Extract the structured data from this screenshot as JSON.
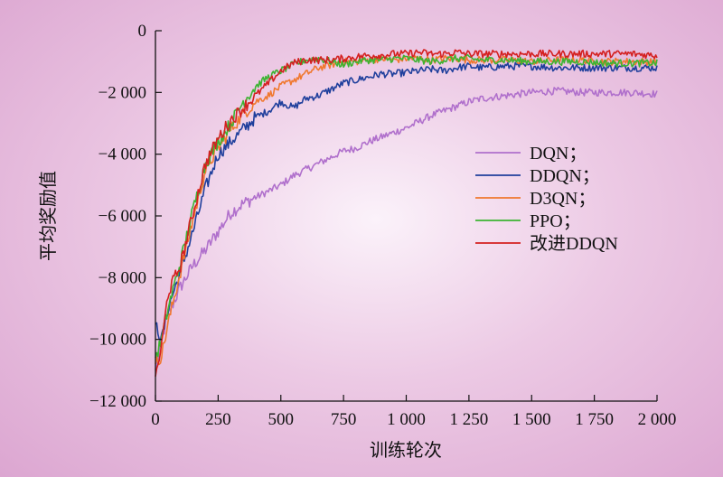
{
  "chart_data": {
    "type": "line",
    "title": "",
    "xlabel": "训练轮次",
    "ylabel": "平均奖励值",
    "xlim": [
      0,
      2000
    ],
    "ylim": [
      -12000,
      0
    ],
    "xticks": [
      0,
      250,
      500,
      750,
      1000,
      1250,
      1500,
      1750,
      2000
    ],
    "xtick_labels": [
      "0",
      "250",
      "500",
      "750",
      "1 000",
      "1 250",
      "1 500",
      "1 750",
      "2 000"
    ],
    "yticks": [
      0,
      -2000,
      -4000,
      -6000,
      -8000,
      -10000,
      -12000
    ],
    "ytick_labels": [
      "0",
      "−2 000",
      "−4 000",
      "−6 000",
      "−8 000",
      "−10 000",
      "−12 000"
    ],
    "grid": false,
    "legend_position": "right",
    "x": [
      0,
      25,
      50,
      100,
      150,
      200,
      250,
      300,
      350,
      400,
      450,
      500,
      550,
      600,
      650,
      700,
      750,
      800,
      850,
      900,
      950,
      1000,
      1050,
      1100,
      1150,
      1200,
      1250,
      1300,
      1400,
      1500,
      1600,
      1700,
      1800,
      1900,
      2000
    ],
    "series": [
      {
        "name": "DQN；",
        "color": "#b070cc",
        "values": [
          -11000,
          -10000,
          -9200,
          -8300,
          -7600,
          -7100,
          -6500,
          -5900,
          -5600,
          -5400,
          -5200,
          -5000,
          -4700,
          -4500,
          -4300,
          -4100,
          -3900,
          -3800,
          -3600,
          -3450,
          -3300,
          -3150,
          -2950,
          -2750,
          -2600,
          -2450,
          -2300,
          -2200,
          -2100,
          -2000,
          -1950,
          -2000,
          -2000,
          -2000,
          -2050
        ]
      },
      {
        "name": "DDQN；",
        "color": "#1f3f9c",
        "values": [
          -9500,
          -10000,
          -9000,
          -7800,
          -6500,
          -5100,
          -4000,
          -3600,
          -3200,
          -2800,
          -2600,
          -2300,
          -2500,
          -2200,
          -2100,
          -1900,
          -1700,
          -1600,
          -1500,
          -1400,
          -1400,
          -1350,
          -1300,
          -1250,
          -1300,
          -1200,
          -1150,
          -1200,
          -1150,
          -1150,
          -1200,
          -1200,
          -1200,
          -1200,
          -1200
        ]
      },
      {
        "name": "D3QN；",
        "color": "#f0782e",
        "values": [
          -10800,
          -10500,
          -9500,
          -7800,
          -6100,
          -4500,
          -3800,
          -3200,
          -2700,
          -2300,
          -2100,
          -1800,
          -1600,
          -1400,
          -1200,
          -1100,
          -1000,
          -1000,
          -950,
          -900,
          -950,
          -900,
          -900,
          -950,
          -900,
          -900,
          -950,
          -950,
          -950,
          -1000,
          -950,
          -950,
          -1000,
          -1000,
          -1000
        ]
      },
      {
        "name": "PPO；",
        "color": "#3cb432",
        "values": [
          -10600,
          -10000,
          -9000,
          -7500,
          -5800,
          -4300,
          -3600,
          -3000,
          -2300,
          -1800,
          -1500,
          -1300,
          -1100,
          -950,
          -900,
          -1000,
          -1100,
          -1000,
          -950,
          -950,
          -900,
          -900,
          -950,
          -1000,
          -950,
          -900,
          -900,
          -950,
          -950,
          -1000,
          -1000,
          -1000,
          -1050,
          -1050,
          -1050
        ]
      },
      {
        "name": "改进DDQN",
        "color": "#d42020",
        "values": [
          -11200,
          -10200,
          -8500,
          -7600,
          -5900,
          -4300,
          -3500,
          -2900,
          -2500,
          -2100,
          -1700,
          -1300,
          -1050,
          -950,
          -950,
          -950,
          -900,
          -850,
          -800,
          -800,
          -750,
          -750,
          -700,
          -750,
          -750,
          -700,
          -750,
          -750,
          -750,
          -750,
          -750,
          -750,
          -750,
          -750,
          -800
        ]
      }
    ]
  }
}
